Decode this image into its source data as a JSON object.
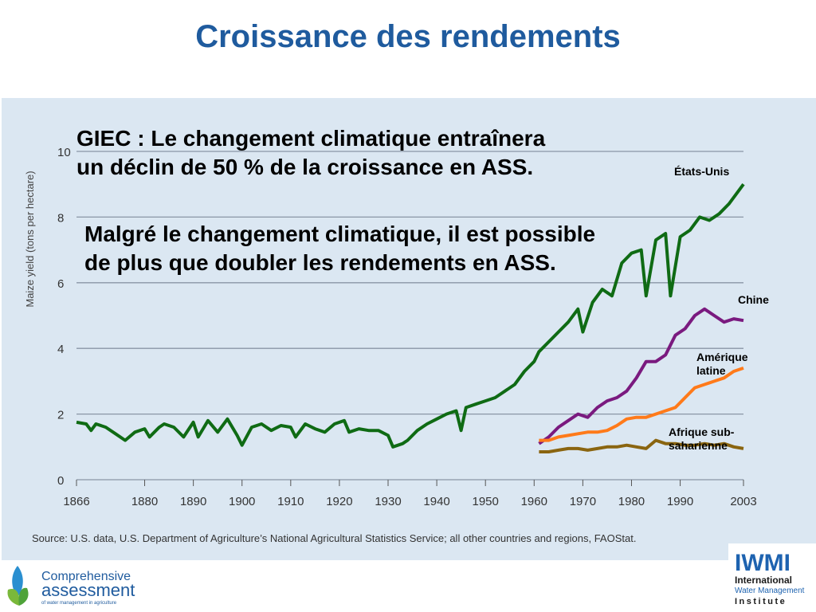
{
  "slide_title": "Croissance des rendements",
  "note1": "GIEC : Le changement climatique entraînera un déclin de 50 % de la croissance en ASS.",
  "note2": "Malgré le changement climatique, il est possible de plus que doubler les rendements en ASS.",
  "source": "Source: U.S. data, U.S. Department of Agriculture’s National Agricultural Statistics Service; all other countries and regions, FAOStat.",
  "logo_left": {
    "line1": "Comprehensive",
    "line2": "assessment",
    "line3": "of water management in agriculture"
  },
  "logo_right": {
    "acronym": "IWMI",
    "line1": "International",
    "line2": "Water Management",
    "line3": "Institute"
  },
  "colors": {
    "title": "#1f5b9e",
    "us": "#0f6b14",
    "china": "#7a1a7f",
    "latam": "#ff7a1a",
    "ssa": "#8a6510",
    "panel": "#dbe7f2",
    "grid": "#8a96a6"
  },
  "chart_data": {
    "type": "line",
    "ylabel": "Maize yield (tons per hectare)",
    "xlabel": "",
    "ylim": [
      0,
      10
    ],
    "xlim": [
      1866,
      2003
    ],
    "yticks": [
      0,
      2,
      4,
      6,
      8,
      10
    ],
    "xticks": [
      1866,
      1880,
      1890,
      1900,
      1910,
      1920,
      1930,
      1940,
      1950,
      1960,
      1970,
      1980,
      1990,
      2003
    ],
    "grid": "horizontal",
    "series": [
      {
        "name": "États-Unis",
        "color": "#0f6b14",
        "x": [
          1866,
          1868,
          1869,
          1870,
          1872,
          1874,
          1876,
          1878,
          1880,
          1881,
          1883,
          1884,
          1886,
          1888,
          1890,
          1891,
          1893,
          1895,
          1897,
          1899,
          1900,
          1902,
          1904,
          1906,
          1908,
          1910,
          1911,
          1913,
          1915,
          1917,
          1919,
          1921,
          1922,
          1924,
          1926,
          1928,
          1930,
          1931,
          1933,
          1934,
          1936,
          1938,
          1940,
          1942,
          1944,
          1945,
          1946,
          1948,
          1950,
          1952,
          1954,
          1956,
          1958,
          1960,
          1961,
          1963,
          1965,
          1967,
          1969,
          1970,
          1972,
          1974,
          1976,
          1978,
          1980,
          1982,
          1983,
          1985,
          1987,
          1988,
          1990,
          1992,
          1994,
          1996,
          1998,
          2000,
          2002,
          2003
        ],
        "y": [
          1.75,
          1.7,
          1.5,
          1.7,
          1.6,
          1.4,
          1.2,
          1.45,
          1.55,
          1.3,
          1.6,
          1.7,
          1.6,
          1.3,
          1.75,
          1.3,
          1.8,
          1.45,
          1.85,
          1.35,
          1.05,
          1.6,
          1.7,
          1.5,
          1.65,
          1.6,
          1.3,
          1.7,
          1.55,
          1.45,
          1.7,
          1.8,
          1.45,
          1.55,
          1.5,
          1.5,
          1.35,
          1.0,
          1.1,
          1.2,
          1.5,
          1.7,
          1.85,
          2.0,
          2.1,
          1.5,
          2.2,
          2.3,
          2.4,
          2.5,
          2.7,
          2.9,
          3.3,
          3.6,
          3.9,
          4.2,
          4.5,
          4.8,
          5.2,
          4.5,
          5.4,
          5.8,
          5.6,
          6.6,
          6.9,
          7.0,
          5.6,
          7.3,
          7.5,
          5.6,
          7.4,
          7.6,
          8.0,
          7.9,
          8.1,
          8.4,
          8.8,
          9.0
        ]
      },
      {
        "name": "Chine",
        "color": "#7a1a7f",
        "x": [
          1961,
          1963,
          1965,
          1967,
          1969,
          1971,
          1973,
          1975,
          1977,
          1979,
          1981,
          1983,
          1985,
          1987,
          1989,
          1991,
          1993,
          1995,
          1997,
          1999,
          2001,
          2003
        ],
        "y": [
          1.1,
          1.3,
          1.6,
          1.8,
          2.0,
          1.9,
          2.2,
          2.4,
          2.5,
          2.7,
          3.1,
          3.6,
          3.6,
          3.8,
          4.4,
          4.6,
          5.0,
          5.2,
          5.0,
          4.8,
          4.9,
          4.85
        ]
      },
      {
        "name": "Amérique latine",
        "color": "#ff7a1a",
        "x": [
          1961,
          1963,
          1965,
          1967,
          1969,
          1971,
          1973,
          1975,
          1977,
          1979,
          1981,
          1983,
          1985,
          1987,
          1989,
          1991,
          1993,
          1995,
          1997,
          1999,
          2001,
          2003
        ],
        "y": [
          1.2,
          1.2,
          1.3,
          1.35,
          1.4,
          1.45,
          1.45,
          1.5,
          1.65,
          1.85,
          1.9,
          1.9,
          2.0,
          2.1,
          2.2,
          2.5,
          2.8,
          2.9,
          3.0,
          3.1,
          3.3,
          3.4
        ]
      },
      {
        "name": "Afrique sub-saharienne",
        "color": "#8a6510",
        "x": [
          1961,
          1963,
          1965,
          1967,
          1969,
          1971,
          1973,
          1975,
          1977,
          1979,
          1981,
          1983,
          1985,
          1987,
          1989,
          1991,
          1993,
          1995,
          1997,
          1999,
          2001,
          2003
        ],
        "y": [
          0.85,
          0.85,
          0.9,
          0.95,
          0.95,
          0.9,
          0.95,
          1.0,
          1.0,
          1.05,
          1.0,
          0.95,
          1.2,
          1.1,
          1.1,
          1.05,
          1.05,
          1.1,
          1.05,
          1.1,
          1.0,
          0.95
        ]
      }
    ]
  }
}
